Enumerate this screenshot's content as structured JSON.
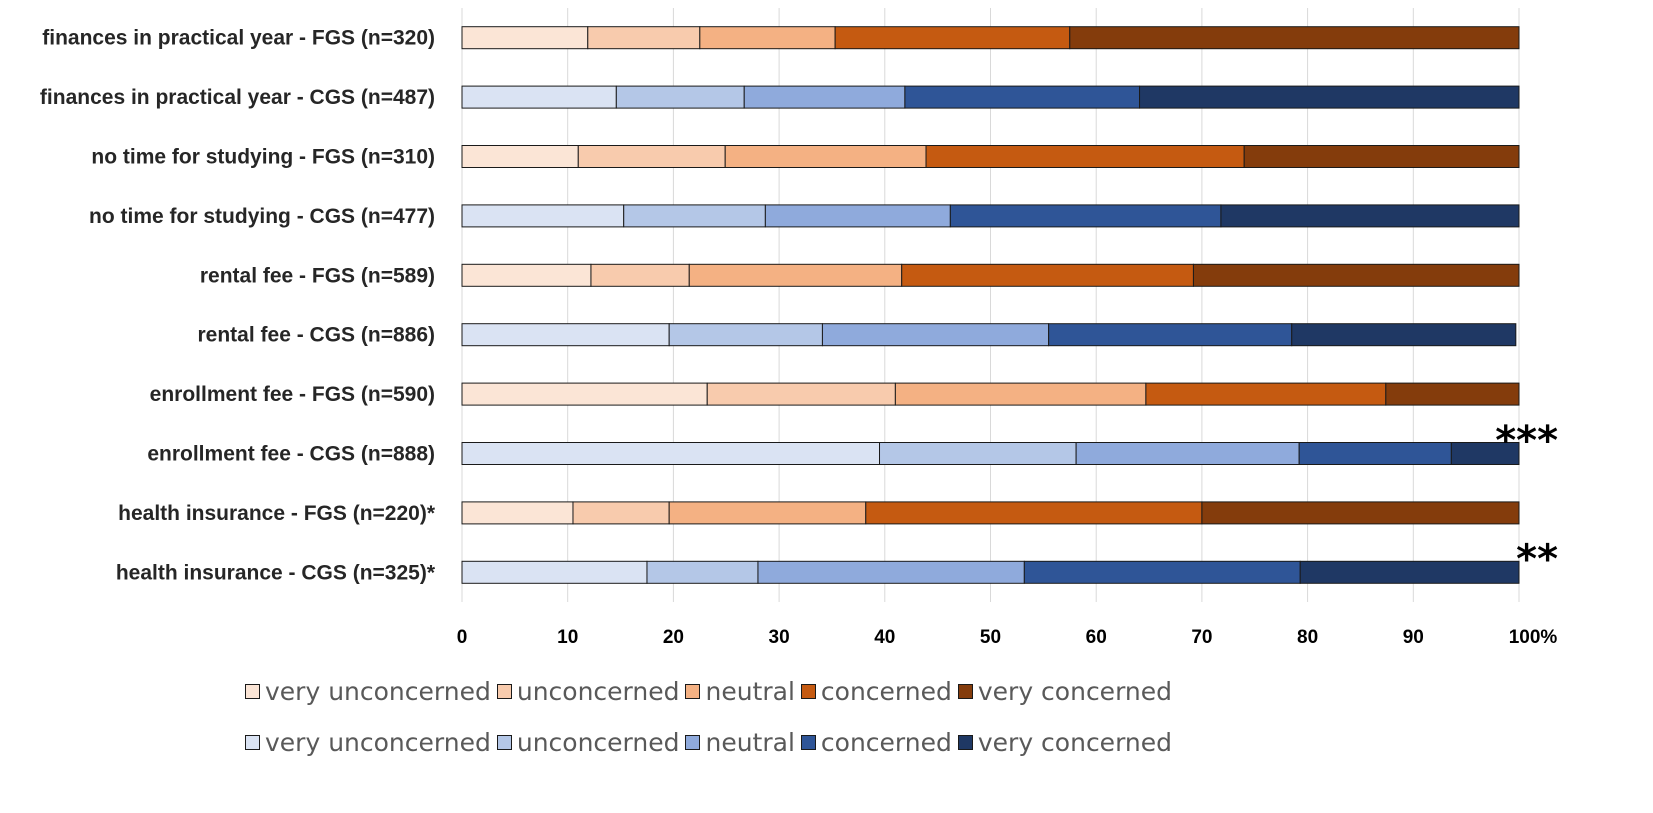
{
  "chart_data": {
    "type": "bar",
    "stacked": true,
    "orientation": "horizontal",
    "categories": [
      "finances in practical year - FGS (n=320)",
      "finances in practical year - CGS (n=487)",
      "no time for studying - FGS (n=310)",
      "no time for studying - CGS (n=477)",
      "rental fee - FGS (n=589)",
      "rental fee - CGS (n=886)",
      "enrollment fee - FGS (n=590)",
      "enrollment fee - CGS (n=888)",
      "health insurance - FGS (n=220)*",
      "health insurance - CGS (n=325)*"
    ],
    "groups": [
      "FGS",
      "CGS",
      "FGS",
      "CGS",
      "FGS",
      "CGS",
      "FGS",
      "CGS",
      "FGS",
      "CGS"
    ],
    "series": [
      {
        "name": "very unconcerned",
        "values": [
          11.9,
          14.6,
          11.0,
          15.3,
          12.2,
          19.6,
          23.2,
          39.5,
          10.5,
          17.5
        ]
      },
      {
        "name": "unconcerned",
        "values": [
          10.6,
          12.1,
          13.9,
          13.4,
          9.3,
          14.5,
          17.8,
          18.6,
          9.1,
          10.5
        ]
      },
      {
        "name": "neutral",
        "values": [
          12.8,
          15.2,
          19.0,
          17.5,
          20.1,
          21.4,
          23.7,
          21.1,
          18.6,
          25.2
        ]
      },
      {
        "name": "concerned",
        "values": [
          22.2,
          22.2,
          30.1,
          25.6,
          27.6,
          23.0,
          22.7,
          14.4,
          31.8,
          26.1
        ]
      },
      {
        "name": "very concerned",
        "values": [
          42.5,
          35.9,
          26.0,
          28.2,
          30.8,
          21.2,
          12.6,
          6.4,
          30.0,
          20.7
        ]
      }
    ],
    "significance": [
      {
        "category": "enrollment fee - CGS (n=888)",
        "label": "***"
      },
      {
        "category": "health insurance - CGS (n=325)*",
        "label": "**"
      }
    ],
    "xlim": [
      0,
      100
    ],
    "xticks": [
      "0",
      "10",
      "20",
      "30",
      "40",
      "50",
      "60",
      "70",
      "80",
      "90",
      "100%"
    ],
    "xlabel": "",
    "ylabel": "",
    "grid": true,
    "colors": {
      "FGS": [
        "#fbe5d6",
        "#f8cbad",
        "#f4b183",
        "#c55a11",
        "#843c0c"
      ],
      "CGS": [
        "#dae3f3",
        "#b4c7e7",
        "#8faadc",
        "#2f5597",
        "#1f3864"
      ]
    },
    "legend": {
      "placement": "bottom",
      "rows": [
        {
          "group": "FGS",
          "items": [
            "very unconcerned",
            "unconcerned",
            "neutral",
            "concerned",
            "very concerned"
          ]
        },
        {
          "group": "CGS",
          "items": [
            "very unconcerned",
            "unconcerned",
            "neutral",
            "concerned",
            "very concerned"
          ]
        }
      ]
    }
  }
}
